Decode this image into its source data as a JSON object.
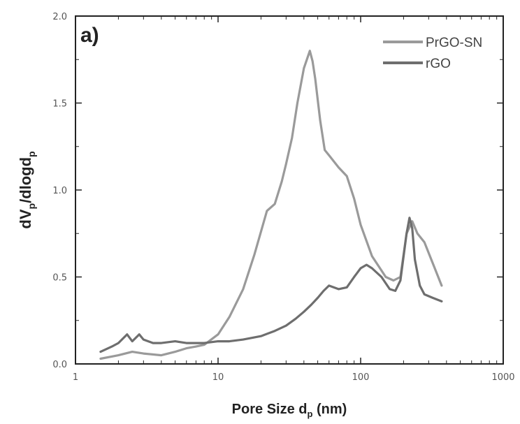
{
  "chart_data": {
    "type": "line",
    "panel_label": "a)",
    "xlabel": "Pore Size d",
    "xlabel_sub": "p",
    "xlabel_unit": "(nm)",
    "ylabel": "dV",
    "ylabel_sub1": "p",
    "ylabel_mid": "/dlogd",
    "ylabel_sub2": "p",
    "x_scale": "log",
    "xlim": [
      1,
      1000
    ],
    "ylim": [
      0,
      2.0
    ],
    "x_ticks": [
      1,
      10,
      100,
      1000
    ],
    "x_tick_labels": [
      "1",
      "10",
      "100",
      "1000"
    ],
    "y_ticks": [
      0,
      0.5,
      1.0,
      1.5,
      2.0
    ],
    "y_tick_labels": [
      "0.0",
      "0.5",
      "1.0",
      "1.5",
      "2.0"
    ],
    "legend_position": "top-right",
    "grid": false,
    "series": [
      {
        "name": "PrGO-SN",
        "color": "#9a9a9a",
        "x": [
          1.5,
          2.0,
          2.5,
          3.0,
          4.0,
          5.0,
          6.0,
          7.0,
          8.0,
          10,
          12,
          15,
          18,
          22,
          25,
          28,
          30,
          33,
          36,
          40,
          44,
          46,
          48,
          52,
          56,
          60,
          70,
          80,
          90,
          100,
          120,
          150,
          170,
          190,
          210,
          230,
          250,
          280,
          320,
          370
        ],
        "y": [
          0.03,
          0.05,
          0.07,
          0.06,
          0.05,
          0.07,
          0.09,
          0.1,
          0.11,
          0.17,
          0.27,
          0.43,
          0.63,
          0.88,
          0.92,
          1.05,
          1.15,
          1.3,
          1.5,
          1.7,
          1.8,
          1.74,
          1.64,
          1.4,
          1.23,
          1.2,
          1.13,
          1.08,
          0.95,
          0.8,
          0.62,
          0.5,
          0.48,
          0.5,
          0.75,
          0.82,
          0.75,
          0.7,
          0.58,
          0.45
        ]
      },
      {
        "name": "rGO",
        "color": "#6e6e6e",
        "x": [
          1.5,
          1.8,
          2.0,
          2.3,
          2.5,
          2.8,
          3.0,
          3.5,
          4.0,
          5.0,
          6.0,
          7.0,
          8.0,
          10,
          12,
          15,
          20,
          25,
          30,
          35,
          40,
          45,
          50,
          55,
          60,
          70,
          80,
          90,
          100,
          110,
          120,
          140,
          160,
          175,
          190,
          210,
          220,
          230,
          240,
          260,
          280,
          320,
          370
        ],
        "y": [
          0.07,
          0.1,
          0.12,
          0.17,
          0.13,
          0.17,
          0.14,
          0.12,
          0.12,
          0.13,
          0.12,
          0.12,
          0.12,
          0.13,
          0.13,
          0.14,
          0.16,
          0.19,
          0.22,
          0.26,
          0.3,
          0.34,
          0.38,
          0.42,
          0.45,
          0.43,
          0.44,
          0.5,
          0.55,
          0.57,
          0.55,
          0.5,
          0.43,
          0.42,
          0.48,
          0.75,
          0.84,
          0.78,
          0.6,
          0.45,
          0.4,
          0.38,
          0.36
        ]
      }
    ]
  }
}
